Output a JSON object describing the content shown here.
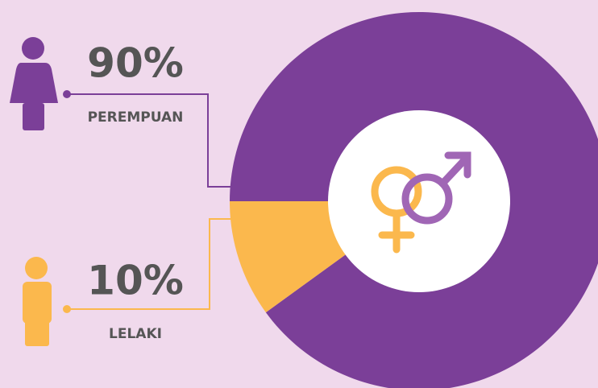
{
  "chart_data": {
    "type": "pie",
    "categories": [
      "PEREMPUAN",
      "LELAKI"
    ],
    "values": [
      90,
      10
    ],
    "value_labels": [
      "90%",
      "10%"
    ],
    "colors": [
      "#7b3f98",
      "#fbb84d"
    ]
  }
}
